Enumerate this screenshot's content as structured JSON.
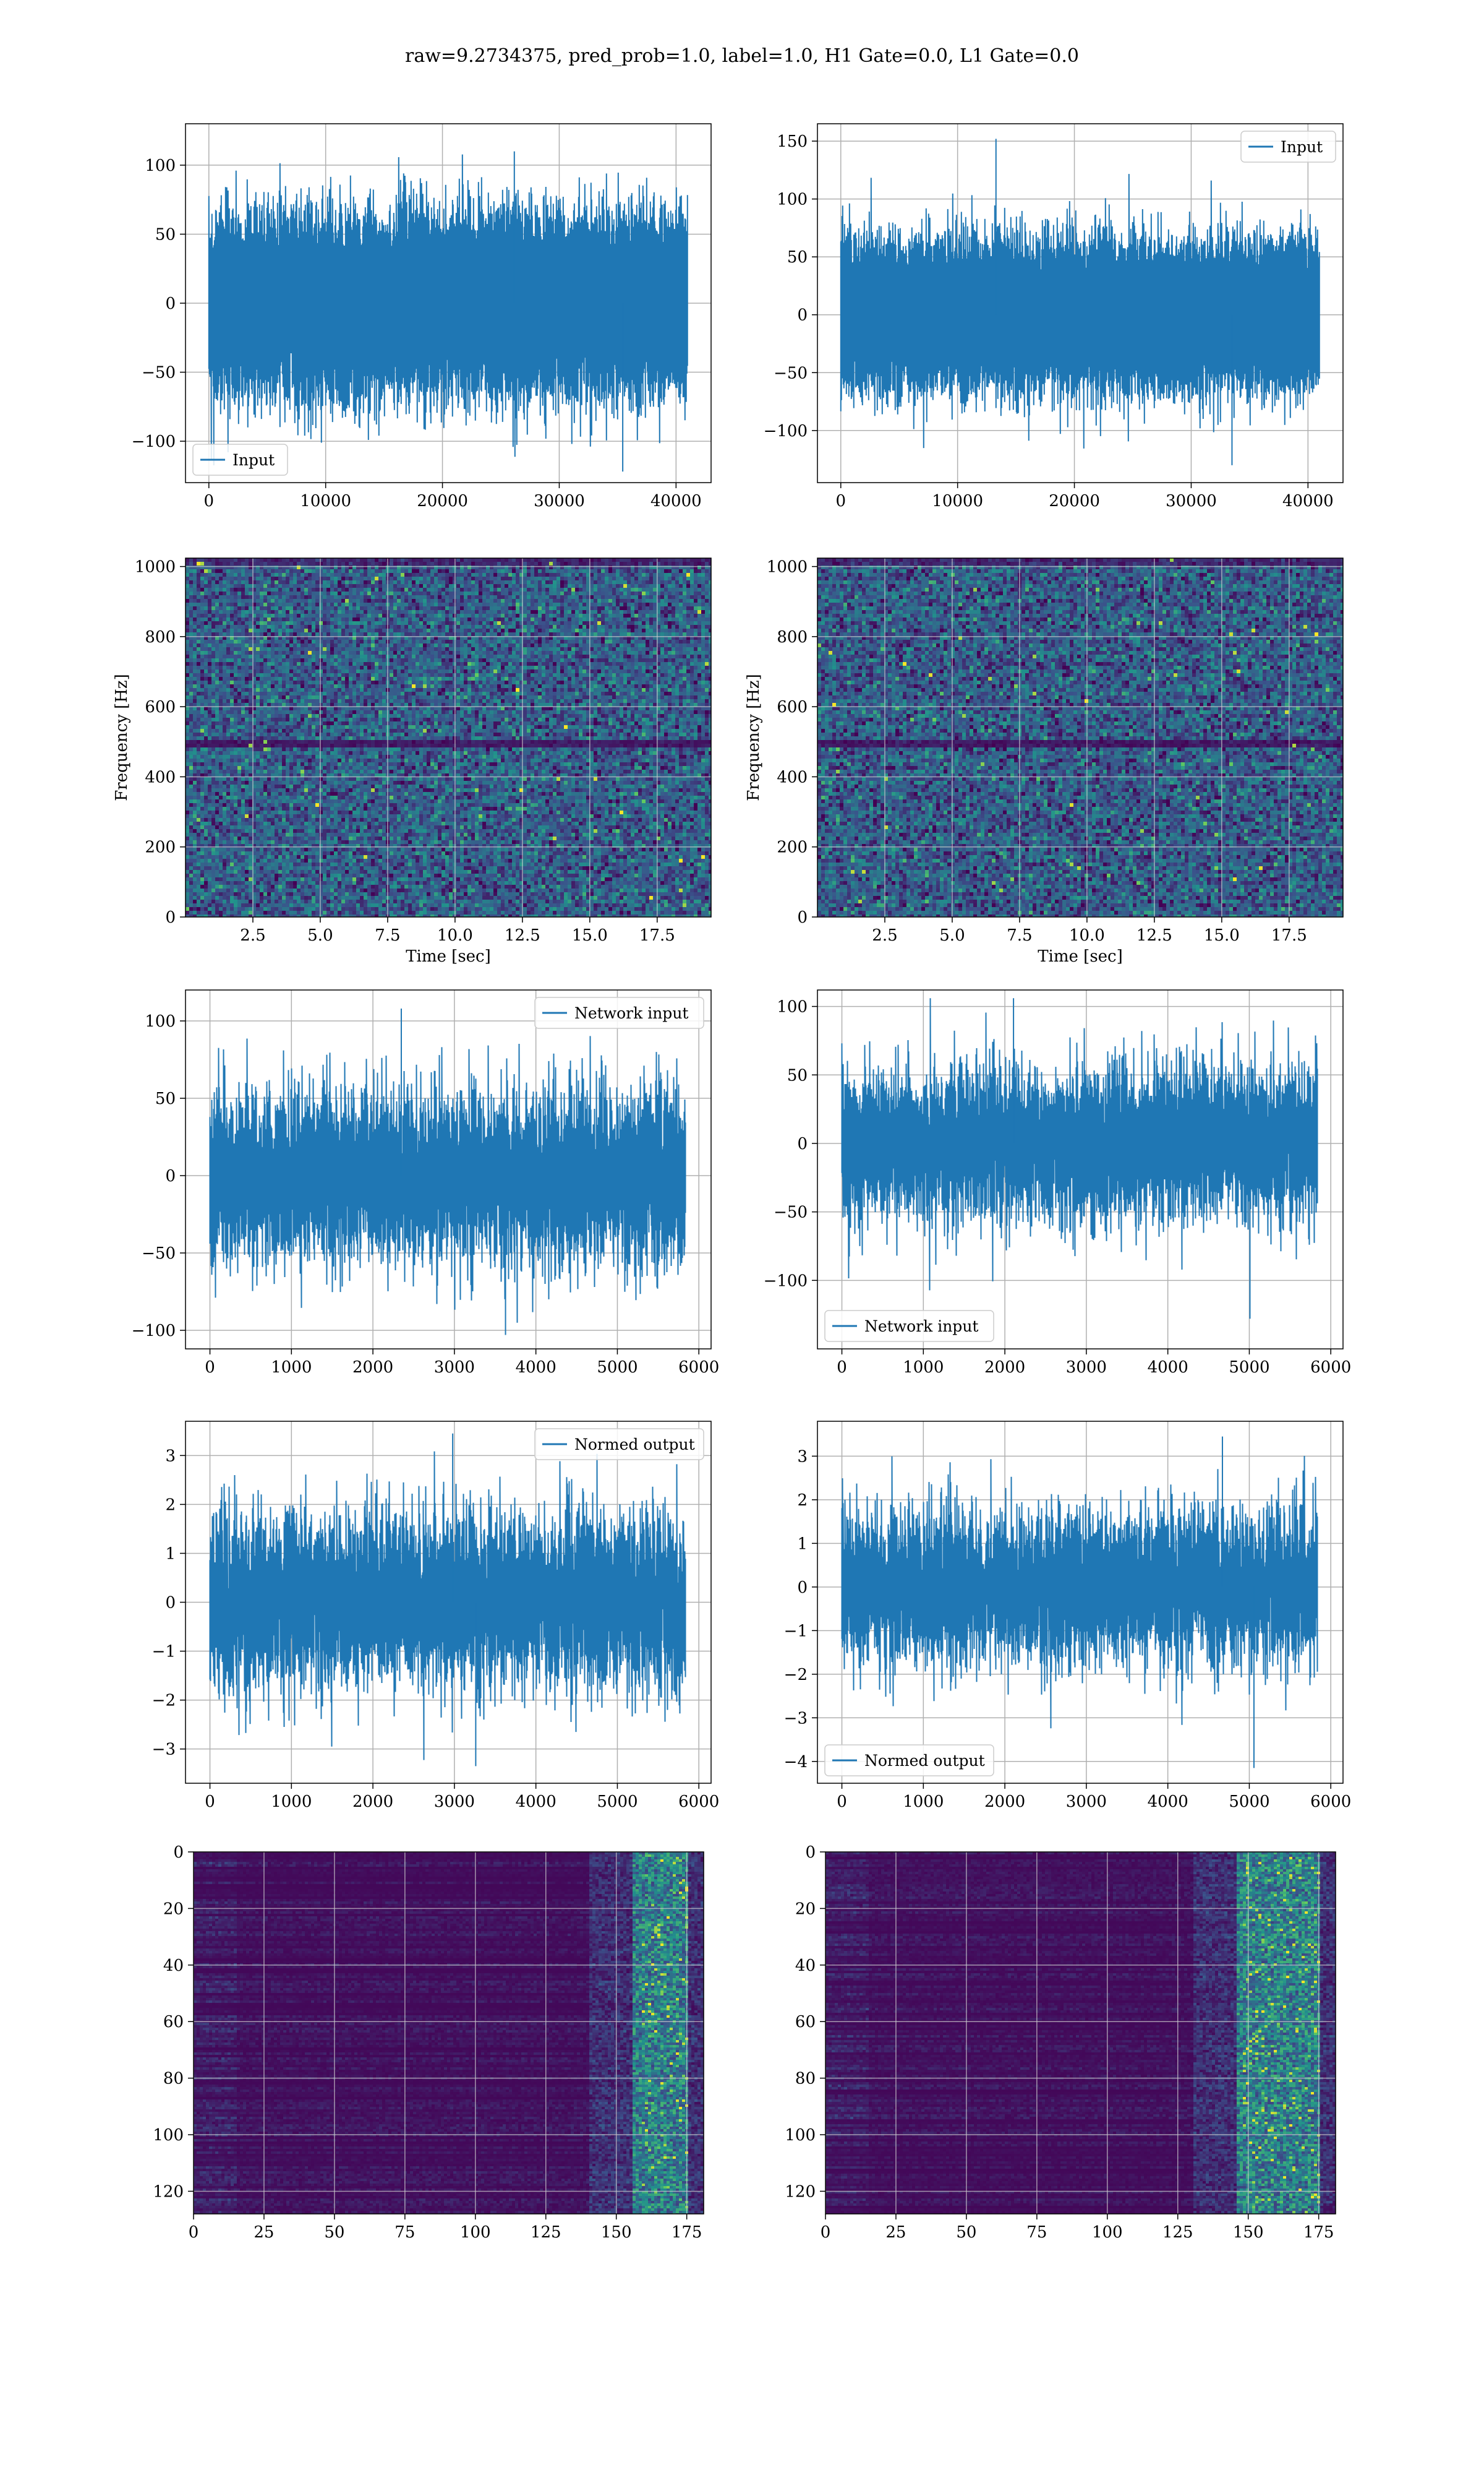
{
  "figure": {
    "title": "raw=9.2734375, pred_prob=1.0, label=1.0, H1 Gate=0.0, L1 Gate=0.0"
  },
  "colors": {
    "line": "#1f77b4",
    "grid": "#b0b0b0",
    "axes": "#000000",
    "viridis": [
      "#440154",
      "#3b528b",
      "#21918c",
      "#5ec962",
      "#fde725"
    ]
  },
  "chart_data": [
    {
      "id": "input-h1",
      "type": "line",
      "noise": "gaussian",
      "series": [
        {
          "name": "Input",
          "n_points": 40960,
          "amplitude_std": 28,
          "max": 110,
          "min": -122
        }
      ],
      "xlim": [
        -2000,
        43000
      ],
      "ylim": [
        -130,
        130
      ],
      "xticks": [
        0,
        10000,
        20000,
        30000,
        40000
      ],
      "xtick_labels": [
        "0",
        "10000",
        "20000",
        "30000",
        "40000"
      ],
      "yticks": [
        -100,
        -50,
        0,
        50,
        100
      ],
      "ytick_labels": [
        "−100",
        "−50",
        "0",
        "50",
        "100"
      ],
      "legend": "lower-left",
      "grid": true
    },
    {
      "id": "input-l1",
      "type": "line",
      "noise": "gaussian",
      "series": [
        {
          "name": "Input",
          "n_points": 40960,
          "amplitude_std": 28,
          "max": 152,
          "min": -130
        }
      ],
      "xlim": [
        -2000,
        43000
      ],
      "ylim": [
        -145,
        165
      ],
      "xticks": [
        0,
        10000,
        20000,
        30000,
        40000
      ],
      "xtick_labels": [
        "0",
        "10000",
        "20000",
        "30000",
        "40000"
      ],
      "yticks": [
        -100,
        -50,
        0,
        50,
        100,
        150
      ],
      "ytick_labels": [
        "−100",
        "−50",
        "0",
        "50",
        "100",
        "150"
      ],
      "legend": "upper-right",
      "grid": true
    },
    {
      "id": "spec-h1",
      "type": "heatmap",
      "xlim": [
        0,
        19.5
      ],
      "ylim": [
        0,
        1024
      ],
      "xticks": [
        2.5,
        5.0,
        7.5,
        10.0,
        12.5,
        15.0,
        17.5
      ],
      "xtick_labels": [
        "2.5",
        "5.0",
        "7.5",
        "10.0",
        "12.5",
        "15.0",
        "17.5"
      ],
      "yticks": [
        0,
        200,
        400,
        600,
        800,
        1000
      ],
      "ytick_labels": [
        "0",
        "200",
        "400",
        "600",
        "800",
        "1000"
      ],
      "xlabel": "Time [sec]",
      "ylabel": "Frequency [Hz]",
      "colormap": "viridis",
      "grid": true,
      "dark_band_hz": 500
    },
    {
      "id": "spec-l1",
      "type": "heatmap",
      "xlim": [
        0,
        19.5
      ],
      "ylim": [
        0,
        1024
      ],
      "xticks": [
        2.5,
        5.0,
        7.5,
        10.0,
        12.5,
        15.0,
        17.5
      ],
      "xtick_labels": [
        "2.5",
        "5.0",
        "7.5",
        "10.0",
        "12.5",
        "15.0",
        "17.5"
      ],
      "yticks": [
        0,
        200,
        400,
        600,
        800,
        1000
      ],
      "ytick_labels": [
        "0",
        "200",
        "400",
        "600",
        "800",
        "1000"
      ],
      "xlabel": "Time [sec]",
      "ylabel": "Frequency [Hz]",
      "colormap": "viridis",
      "grid": true,
      "dark_band_hz": 500
    },
    {
      "id": "network-h1",
      "type": "line",
      "noise": "gaussian",
      "series": [
        {
          "name": "Network input",
          "n_points": 5840,
          "amplitude_std": 27,
          "max": 108,
          "min": -103
        }
      ],
      "xlim": [
        -300,
        6150
      ],
      "ylim": [
        -112,
        120
      ],
      "xticks": [
        0,
        1000,
        2000,
        3000,
        4000,
        5000,
        6000
      ],
      "xtick_labels": [
        "0",
        "1000",
        "2000",
        "3000",
        "4000",
        "5000",
        "6000"
      ],
      "yticks": [
        -100,
        -50,
        0,
        50,
        100
      ],
      "ytick_labels": [
        "−100",
        "−50",
        "0",
        "50",
        "100"
      ],
      "legend": "upper-right",
      "grid": true
    },
    {
      "id": "network-l1",
      "type": "line",
      "noise": "gaussian",
      "series": [
        {
          "name": "Network input",
          "n_points": 5840,
          "amplitude_std": 27,
          "max": 106,
          "min": -128
        }
      ],
      "xlim": [
        -300,
        6150
      ],
      "ylim": [
        -150,
        112
      ],
      "xticks": [
        0,
        1000,
        2000,
        3000,
        4000,
        5000,
        6000
      ],
      "xtick_labels": [
        "0",
        "1000",
        "2000",
        "3000",
        "4000",
        "5000",
        "6000"
      ],
      "yticks": [
        -100,
        -50,
        0,
        50,
        100
      ],
      "ytick_labels": [
        "−100",
        "−50",
        "0",
        "50",
        "100"
      ],
      "legend": "lower-left",
      "grid": true
    },
    {
      "id": "normed-h1",
      "type": "line",
      "noise": "gaussian",
      "series": [
        {
          "name": "Normed output",
          "n_points": 5840,
          "amplitude_std": 0.85,
          "max": 3.45,
          "min": -3.35
        }
      ],
      "xlim": [
        -300,
        6150
      ],
      "ylim": [
        -3.7,
        3.7
      ],
      "xticks": [
        0,
        1000,
        2000,
        3000,
        4000,
        5000,
        6000
      ],
      "xtick_labels": [
        "0",
        "1000",
        "2000",
        "3000",
        "4000",
        "5000",
        "6000"
      ],
      "yticks": [
        -3,
        -2,
        -1,
        0,
        1,
        2,
        3
      ],
      "ytick_labels": [
        "−3",
        "−2",
        "−1",
        "0",
        "1",
        "2",
        "3"
      ],
      "legend": "upper-right",
      "grid": true
    },
    {
      "id": "normed-l1",
      "type": "line",
      "noise": "gaussian",
      "series": [
        {
          "name": "Normed output",
          "n_points": 5840,
          "amplitude_std": 0.85,
          "max": 3.45,
          "min": -4.15
        }
      ],
      "xlim": [
        -300,
        6150
      ],
      "ylim": [
        -4.5,
        3.8
      ],
      "xticks": [
        0,
        1000,
        2000,
        3000,
        4000,
        5000,
        6000
      ],
      "xtick_labels": [
        "0",
        "1000",
        "2000",
        "3000",
        "4000",
        "5000",
        "6000"
      ],
      "yticks": [
        -4,
        -3,
        -2,
        -1,
        0,
        1,
        2,
        3
      ],
      "ytick_labels": [
        "−4",
        "−3",
        "−2",
        "−1",
        "0",
        "1",
        "2",
        "3"
      ],
      "legend": "lower-left",
      "grid": true
    },
    {
      "id": "qtransform-h1",
      "type": "heatmap",
      "xlim": [
        0,
        181
      ],
      "ylim": [
        128,
        0
      ],
      "xticks": [
        0,
        25,
        50,
        75,
        100,
        125,
        150,
        175
      ],
      "xtick_labels": [
        "0",
        "25",
        "50",
        "75",
        "100",
        "125",
        "150",
        "175"
      ],
      "yticks": [
        0,
        20,
        40,
        60,
        80,
        100,
        120
      ],
      "ytick_labels": [
        "0",
        "20",
        "40",
        "60",
        "80",
        "100",
        "120"
      ],
      "colormap": "viridis",
      "grid": true,
      "bright_columns": [
        155,
        175
      ]
    },
    {
      "id": "qtransform-l1",
      "type": "heatmap",
      "xlim": [
        0,
        181
      ],
      "ylim": [
        128,
        0
      ],
      "xticks": [
        0,
        25,
        50,
        75,
        100,
        125,
        150,
        175
      ],
      "xtick_labels": [
        "0",
        "25",
        "50",
        "75",
        "100",
        "125",
        "150",
        "175"
      ],
      "yticks": [
        0,
        20,
        40,
        60,
        80,
        100,
        120
      ],
      "ytick_labels": [
        "0",
        "20",
        "40",
        "60",
        "80",
        "100",
        "120"
      ],
      "colormap": "viridis",
      "grid": true,
      "bright_columns": [
        145,
        175
      ]
    }
  ]
}
